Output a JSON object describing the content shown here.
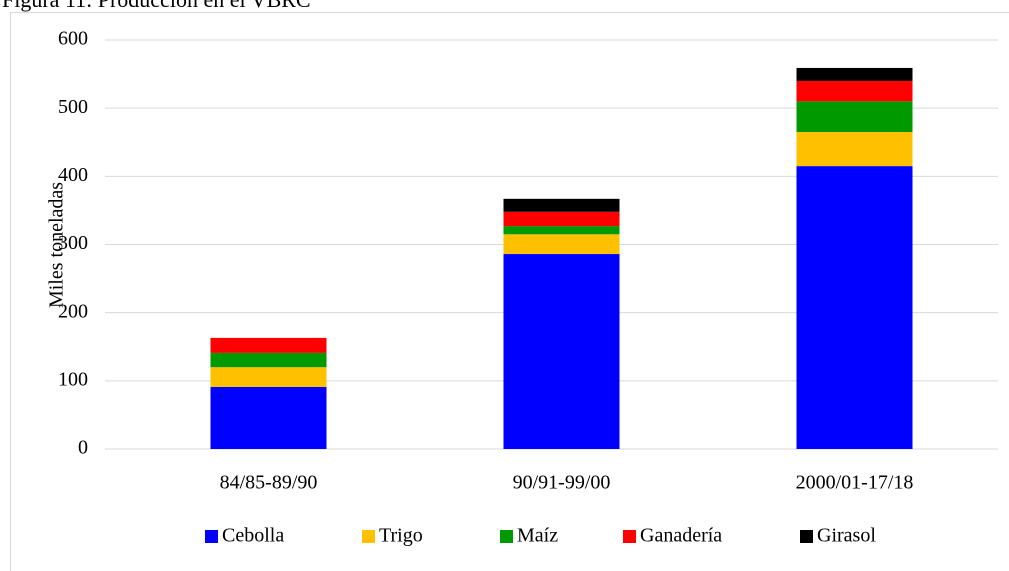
{
  "chart_data": {
    "type": "bar",
    "stacked": true,
    "title": "Figura 11: Producción en el VBRC",
    "y_label": "Miles toneladas",
    "categories": [
      "84/85-89/90",
      "90/91-99/00",
      "2000/01-17/18"
    ],
    "series": [
      {
        "name": "Cebolla",
        "color": "#0000ff",
        "values": [
          91,
          286,
          415
        ]
      },
      {
        "name": "Trigo",
        "color": "#ffc000",
        "values": [
          29,
          29,
          50
        ]
      },
      {
        "name": "Maíz",
        "color": "#009900",
        "values": [
          21,
          12,
          45
        ]
      },
      {
        "name": "Ganadería",
        "color": "#ff0000",
        "values": [
          22,
          21,
          30
        ]
      },
      {
        "name": "Girasol",
        "color": "#000000",
        "values": [
          0,
          19,
          19
        ]
      }
    ],
    "ylim": [
      0,
      600
    ],
    "yticks": [
      0,
      100,
      200,
      300,
      400,
      500,
      600
    ],
    "grid": true,
    "legend": "bottom"
  }
}
